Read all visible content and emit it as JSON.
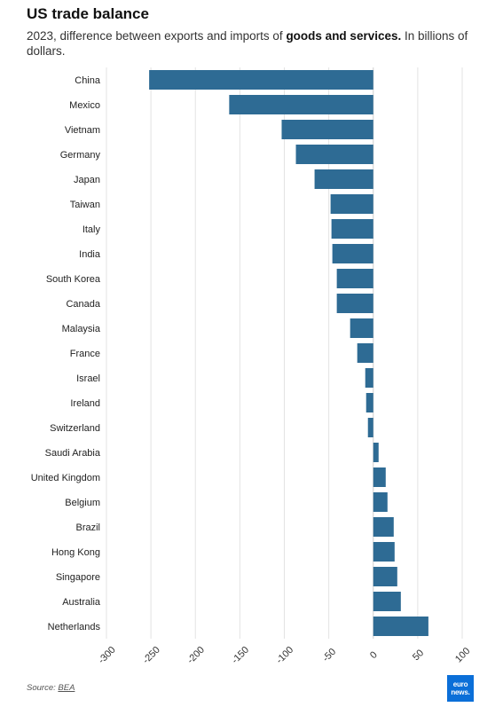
{
  "title": "US trade balance",
  "subtitle": {
    "prefix": "2023, difference between exports and imports of ",
    "bold": "goods and services.",
    "suffix": " In billions of dollars."
  },
  "source": {
    "prefix": "Source: ",
    "link": "BEA"
  },
  "logo": {
    "line1": "euro",
    "line2": "news."
  },
  "colors": {
    "bar": "#2e6b94",
    "grid": "#e3e3e3",
    "axis": "#333333",
    "logo_bg": "#0b6fd8"
  },
  "chart_data": {
    "type": "bar",
    "orientation": "horizontal",
    "categories": [
      "China",
      "Mexico",
      "Vietnam",
      "Germany",
      "Japan",
      "Taiwan",
      "Italy",
      "India",
      "South Korea",
      "Canada",
      "Malaysia",
      "France",
      "Israel",
      "Ireland",
      "Switzerland",
      "Saudi Arabia",
      "United Kingdom",
      "Belgium",
      "Brazil",
      "Hong Kong",
      "Singapore",
      "Australia",
      "Netherlands"
    ],
    "values": [
      -252,
      -162,
      -103,
      -87,
      -66,
      -48,
      -47,
      -46,
      -41,
      -41,
      -26,
      -18,
      -9,
      -8,
      -6,
      6,
      14,
      16,
      23,
      24,
      27,
      31,
      62
    ],
    "x_ticks": [
      -300,
      -250,
      -200,
      -150,
      -100,
      -50,
      0,
      50,
      100
    ],
    "xlim": [
      -300,
      100
    ],
    "grid": true,
    "xlabel": "",
    "ylabel": ""
  }
}
